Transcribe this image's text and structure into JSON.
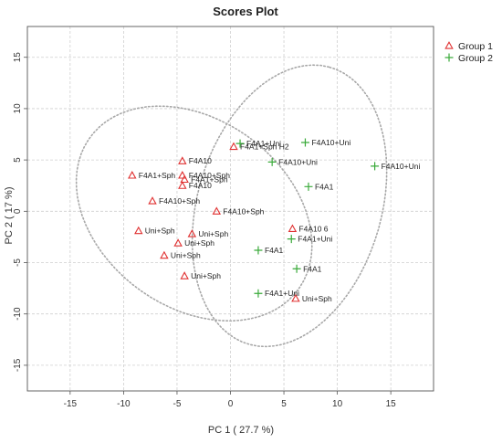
{
  "chart_data": {
    "type": "scatter",
    "title": "Scores Plot",
    "xlabel": "PC 1 ( 27.7 %)",
    "ylabel": "PC 2 ( 17 %)",
    "xlim": [
      -19,
      19
    ],
    "ylim": [
      -17.5,
      18
    ],
    "xticks": [
      -15,
      -10,
      -5,
      0,
      5,
      10,
      15
    ],
    "yticks": [
      -15,
      -10,
      -5,
      0,
      5,
      10,
      15
    ],
    "grid": true,
    "legend_position": "top-right",
    "series": [
      {
        "name": "Group 1",
        "marker": "triangle",
        "color": "#e03030",
        "points": [
          {
            "x": 0.3,
            "y": 6.3,
            "label": "F4A1+Sph H2"
          },
          {
            "x": -4.5,
            "y": 4.9,
            "label": "F4A10"
          },
          {
            "x": -9.2,
            "y": 3.5,
            "label": "F4A1+Sph"
          },
          {
            "x": -4.5,
            "y": 3.5,
            "label": "F4A10+Sph"
          },
          {
            "x": -4.3,
            "y": 3.1,
            "label": "F4A1+Sph"
          },
          {
            "x": -4.5,
            "y": 2.5,
            "label": "F4A10"
          },
          {
            "x": -7.3,
            "y": 1.0,
            "label": "F4A10+Sph"
          },
          {
            "x": -1.3,
            "y": 0.0,
            "label": "F4A10+Sph"
          },
          {
            "x": -8.6,
            "y": -1.9,
            "label": "Uni+Sph"
          },
          {
            "x": -3.6,
            "y": -2.2,
            "label": "Uni+Sph"
          },
          {
            "x": -4.9,
            "y": -3.1,
            "label": "Uni+Sph"
          },
          {
            "x": -6.2,
            "y": -4.3,
            "label": "Uni+Sph"
          },
          {
            "x": -4.3,
            "y": -6.3,
            "label": "Uni+Sph"
          },
          {
            "x": 5.8,
            "y": -1.7,
            "label": "F4A10 6"
          },
          {
            "x": 6.1,
            "y": -8.5,
            "label": "Uni+Sph"
          }
        ]
      },
      {
        "name": "Group 2",
        "marker": "plus",
        "color": "#3aaa3a",
        "points": [
          {
            "x": 0.9,
            "y": 6.6,
            "label": "F4A1+Uni"
          },
          {
            "x": 7.0,
            "y": 6.7,
            "label": "F4A10+Uni"
          },
          {
            "x": 3.9,
            "y": 4.8,
            "label": "F4A10+Uni"
          },
          {
            "x": 13.5,
            "y": 4.4,
            "label": "F4A10+Uni"
          },
          {
            "x": 7.3,
            "y": 2.4,
            "label": "F4A1"
          },
          {
            "x": 5.7,
            "y": -2.7,
            "label": "F4A1+Uni"
          },
          {
            "x": 2.6,
            "y": -3.8,
            "label": "F4A1"
          },
          {
            "x": 6.2,
            "y": -5.6,
            "label": "F4A1"
          },
          {
            "x": 2.6,
            "y": -8.0,
            "label": "F4A1+Uni"
          }
        ]
      }
    ]
  }
}
